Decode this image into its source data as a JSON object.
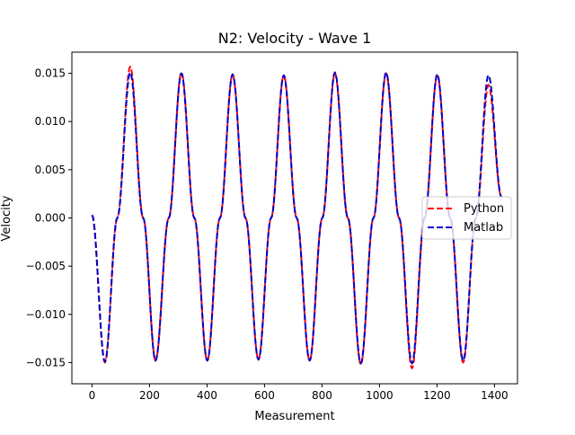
{
  "chart_data": {
    "type": "line",
    "title": "N2: Velocity - Wave 1",
    "xlabel": "Measurement",
    "ylabel": "Velocity",
    "xlim": [
      -70,
      1480
    ],
    "ylim": [
      -0.0172,
      0.0172
    ],
    "xticks": [
      0,
      200,
      400,
      600,
      800,
      1000,
      1200,
      1400
    ],
    "xtick_labels": [
      "0",
      "200",
      "400",
      "600",
      "800",
      "1000",
      "1200",
      "1400"
    ],
    "yticks": [
      -0.015,
      -0.01,
      -0.005,
      0.0,
      0.005,
      0.01,
      0.015
    ],
    "ytick_labels": [
      "−0.015",
      "−0.010",
      "−0.005",
      "0.000",
      "0.005",
      "0.010",
      "0.015"
    ],
    "legend_position": "center-right",
    "series": [
      {
        "name": "Python",
        "color": "#ff0000",
        "linestyle": "dashed",
        "x": [
          0,
          45,
          88,
          133,
          178,
          221,
          267,
          311,
          356,
          401,
          445,
          489,
          534,
          579,
          623,
          667,
          712,
          757,
          801,
          845,
          890,
          935,
          979,
          1023,
          1068,
          1113,
          1157,
          1201,
          1246,
          1291,
          1335,
          1379,
          1424
        ],
        "y": [
          0.0003,
          -0.015,
          0.0,
          0.0157,
          0.0,
          -0.0148,
          0.0,
          0.0151,
          0.0,
          -0.0148,
          0.0,
          0.0149,
          0.0,
          -0.0147,
          0.0,
          0.0148,
          0.0,
          -0.0148,
          0.0,
          0.015,
          0.0,
          -0.0152,
          0.0,
          0.015,
          0.0,
          -0.0156,
          0.0,
          0.0148,
          0.0,
          -0.015,
          0.0,
          0.0138,
          0.0022
        ]
      },
      {
        "name": "Matlab",
        "color": "#0000cc",
        "linestyle": "dashed",
        "x": [
          0,
          45,
          88,
          133,
          178,
          221,
          267,
          311,
          356,
          401,
          445,
          489,
          534,
          579,
          623,
          667,
          712,
          757,
          801,
          845,
          890,
          935,
          979,
          1023,
          1068,
          1113,
          1157,
          1201,
          1246,
          1291,
          1335,
          1379,
          1424
        ],
        "y": [
          0.0003,
          -0.0149,
          0.0,
          0.0151,
          0.0,
          -0.0148,
          0.0,
          0.015,
          0.0,
          -0.0148,
          0.0,
          0.0149,
          0.0,
          -0.0147,
          0.0,
          0.0148,
          0.0,
          -0.0148,
          0.0,
          0.0151,
          0.0,
          -0.0151,
          0.0,
          0.0151,
          0.0,
          -0.0151,
          0.0,
          0.0149,
          0.0,
          -0.0148,
          0.0,
          0.0148,
          0.0022
        ]
      }
    ]
  }
}
